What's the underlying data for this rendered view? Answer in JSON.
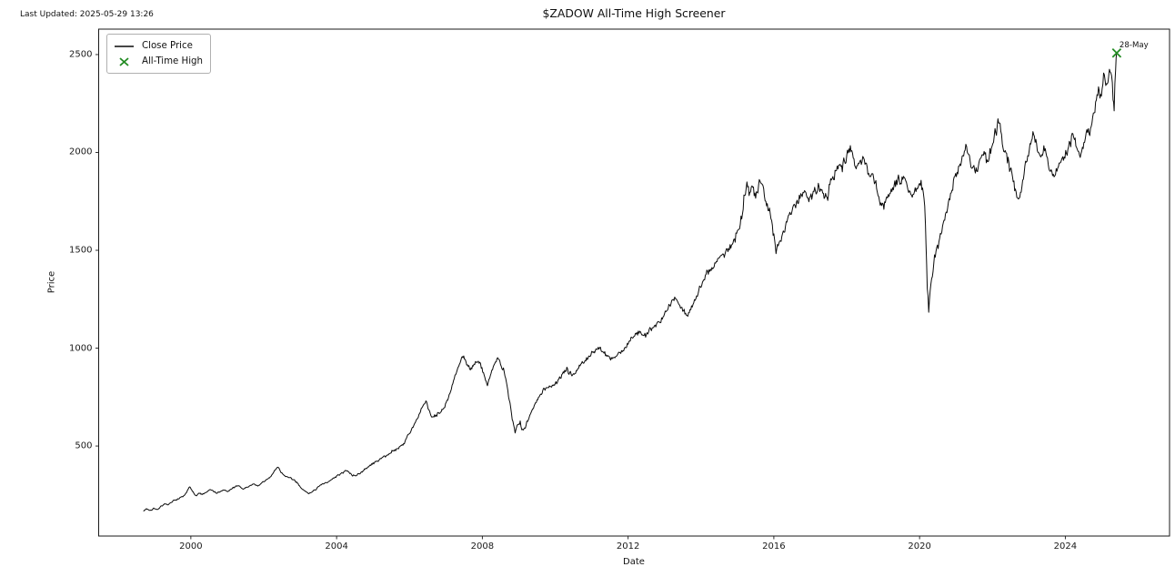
{
  "header": {
    "last_updated": "Last Updated: 2025-05-29 13:26",
    "title": "$ZADOW All-Time High Screener"
  },
  "legend": {
    "close_price": "Close Price",
    "all_time_high": "All-Time High"
  },
  "colors": {
    "line": "#0a0a0a",
    "marker_green": "#228B22",
    "spine": "#1a1a1a",
    "text": "#111111",
    "background": "#ffffff"
  },
  "chart_data": {
    "type": "line",
    "title": "$ZADOW All-Time High Screener",
    "xlabel": "Date",
    "ylabel": "Price",
    "xlim": [
      1997.47,
      2026.86
    ],
    "ylim": [
      40,
      2630
    ],
    "xticks": [
      2000,
      2004,
      2008,
      2012,
      2016,
      2020,
      2024
    ],
    "yticks": [
      500,
      1000,
      1500,
      2000,
      2500
    ],
    "grid": false,
    "legend_position": "upper left",
    "series": [
      {
        "name": "Close Price",
        "color": "#0a0a0a",
        "anchors": [
          [
            1998.7,
            167
          ],
          [
            1998.78,
            180
          ],
          [
            1998.88,
            171
          ],
          [
            1998.98,
            184
          ],
          [
            1999.08,
            176
          ],
          [
            1999.18,
            194
          ],
          [
            1999.28,
            206
          ],
          [
            1999.38,
            200
          ],
          [
            1999.48,
            212
          ],
          [
            1999.58,
            222
          ],
          [
            1999.68,
            230
          ],
          [
            1999.78,
            240
          ],
          [
            1999.88,
            262
          ],
          [
            1999.97,
            291
          ],
          [
            2000.06,
            268
          ],
          [
            2000.14,
            247
          ],
          [
            2000.22,
            259
          ],
          [
            2000.32,
            252
          ],
          [
            2000.42,
            263
          ],
          [
            2000.52,
            277
          ],
          [
            2000.62,
            267
          ],
          [
            2000.72,
            258
          ],
          [
            2000.82,
            268
          ],
          [
            2000.92,
            274
          ],
          [
            2001.02,
            266
          ],
          [
            2001.12,
            278
          ],
          [
            2001.22,
            290
          ],
          [
            2001.32,
            296
          ],
          [
            2001.42,
            281
          ],
          [
            2001.52,
            288
          ],
          [
            2001.62,
            297
          ],
          [
            2001.72,
            305
          ],
          [
            2001.82,
            298
          ],
          [
            2001.92,
            307
          ],
          [
            2002.02,
            318
          ],
          [
            2002.12,
            333
          ],
          [
            2002.22,
            352
          ],
          [
            2002.32,
            377
          ],
          [
            2002.4,
            390
          ],
          [
            2002.48,
            363
          ],
          [
            2002.58,
            348
          ],
          [
            2002.68,
            339
          ],
          [
            2002.78,
            328
          ],
          [
            2002.88,
            314
          ],
          [
            2002.98,
            297
          ],
          [
            2003.08,
            278
          ],
          [
            2003.18,
            264
          ],
          [
            2003.28,
            261
          ],
          [
            2003.38,
            277
          ],
          [
            2003.48,
            291
          ],
          [
            2003.58,
            301
          ],
          [
            2003.68,
            312
          ],
          [
            2003.78,
            320
          ],
          [
            2003.88,
            329
          ],
          [
            2003.98,
            339
          ],
          [
            2004.08,
            350
          ],
          [
            2004.18,
            360
          ],
          [
            2004.28,
            371
          ],
          [
            2004.38,
            361
          ],
          [
            2004.48,
            351
          ],
          [
            2004.58,
            359
          ],
          [
            2004.68,
            369
          ],
          [
            2004.78,
            381
          ],
          [
            2004.88,
            393
          ],
          [
            2004.98,
            406
          ],
          [
            2005.08,
            420
          ],
          [
            2005.18,
            433
          ],
          [
            2005.28,
            444
          ],
          [
            2005.38,
            453
          ],
          [
            2005.48,
            463
          ],
          [
            2005.58,
            475
          ],
          [
            2005.68,
            487
          ],
          [
            2005.78,
            502
          ],
          [
            2005.88,
            524
          ],
          [
            2005.98,
            560
          ],
          [
            2006.08,
            596
          ],
          [
            2006.18,
            631
          ],
          [
            2006.28,
            667
          ],
          [
            2006.38,
            708
          ],
          [
            2006.45,
            729
          ],
          [
            2006.53,
            686
          ],
          [
            2006.61,
            649
          ],
          [
            2006.69,
            661
          ],
          [
            2006.79,
            673
          ],
          [
            2006.89,
            690
          ],
          [
            2006.99,
            720
          ],
          [
            2007.09,
            766
          ],
          [
            2007.19,
            818
          ],
          [
            2007.29,
            874
          ],
          [
            2007.39,
            924
          ],
          [
            2007.47,
            949
          ],
          [
            2007.57,
            911
          ],
          [
            2007.67,
            889
          ],
          [
            2007.77,
            919
          ],
          [
            2007.87,
            931
          ],
          [
            2007.97,
            896
          ],
          [
            2008.07,
            849
          ],
          [
            2008.14,
            807
          ],
          [
            2008.22,
            860
          ],
          [
            2008.32,
            914
          ],
          [
            2008.42,
            953
          ],
          [
            2008.52,
            906
          ],
          [
            2008.62,
            856
          ],
          [
            2008.72,
            748
          ],
          [
            2008.82,
            634
          ],
          [
            2008.9,
            566
          ],
          [
            2008.97,
            610
          ],
          [
            2009.04,
            630
          ],
          [
            2009.12,
            583
          ],
          [
            2009.22,
            630
          ],
          [
            2009.32,
            664
          ],
          [
            2009.42,
            703
          ],
          [
            2009.52,
            736
          ],
          [
            2009.62,
            762
          ],
          [
            2009.72,
            782
          ],
          [
            2009.82,
            797
          ],
          [
            2009.92,
            812
          ],
          [
            2010.02,
            832
          ],
          [
            2010.12,
            855
          ],
          [
            2010.22,
            882
          ],
          [
            2010.32,
            905
          ],
          [
            2010.42,
            882
          ],
          [
            2010.52,
            868
          ],
          [
            2010.62,
            897
          ],
          [
            2010.72,
            920
          ],
          [
            2010.82,
            938
          ],
          [
            2010.92,
            958
          ],
          [
            2011.02,
            984
          ],
          [
            2011.12,
            998
          ],
          [
            2011.22,
            1004
          ],
          [
            2011.32,
            980
          ],
          [
            2011.42,
            955
          ],
          [
            2011.52,
            938
          ],
          [
            2011.62,
            954
          ],
          [
            2011.72,
            972
          ],
          [
            2011.82,
            991
          ],
          [
            2011.92,
            1006
          ],
          [
            2012.02,
            1032
          ],
          [
            2012.12,
            1052
          ],
          [
            2012.22,
            1072
          ],
          [
            2012.32,
            1088
          ],
          [
            2012.42,
            1066
          ],
          [
            2012.52,
            1080
          ],
          [
            2012.62,
            1098
          ],
          [
            2012.72,
            1118
          ],
          [
            2012.82,
            1138
          ],
          [
            2012.92,
            1158
          ],
          [
            2013.02,
            1192
          ],
          [
            2013.12,
            1226
          ],
          [
            2013.22,
            1247
          ],
          [
            2013.3,
            1254
          ],
          [
            2013.4,
            1224
          ],
          [
            2013.5,
            1186
          ],
          [
            2013.6,
            1170
          ],
          [
            2013.7,
            1200
          ],
          [
            2013.8,
            1230
          ],
          [
            2013.9,
            1262
          ],
          [
            2014.0,
            1308
          ],
          [
            2014.1,
            1344
          ],
          [
            2014.2,
            1377
          ],
          [
            2014.3,
            1410
          ],
          [
            2014.4,
            1434
          ],
          [
            2014.5,
            1457
          ],
          [
            2014.6,
            1484
          ],
          [
            2014.7,
            1510
          ],
          [
            2014.8,
            1534
          ],
          [
            2014.9,
            1562
          ],
          [
            2015.0,
            1604
          ],
          [
            2015.1,
            1682
          ],
          [
            2015.18,
            1788
          ],
          [
            2015.26,
            1856
          ],
          [
            2015.34,
            1796
          ],
          [
            2015.42,
            1822
          ],
          [
            2015.5,
            1764
          ],
          [
            2015.58,
            1832
          ],
          [
            2015.66,
            1838
          ],
          [
            2015.74,
            1774
          ],
          [
            2015.82,
            1744
          ],
          [
            2015.9,
            1690
          ],
          [
            2015.98,
            1574
          ],
          [
            2016.06,
            1478
          ],
          [
            2016.14,
            1536
          ],
          [
            2016.24,
            1588
          ],
          [
            2016.34,
            1648
          ],
          [
            2016.44,
            1700
          ],
          [
            2016.54,
            1730
          ],
          [
            2016.64,
            1757
          ],
          [
            2016.74,
            1790
          ],
          [
            2016.84,
            1806
          ],
          [
            2016.92,
            1774
          ],
          [
            2017.02,
            1796
          ],
          [
            2017.12,
            1826
          ],
          [
            2017.22,
            1848
          ],
          [
            2017.32,
            1814
          ],
          [
            2017.42,
            1800
          ],
          [
            2017.52,
            1844
          ],
          [
            2017.62,
            1880
          ],
          [
            2017.72,
            1910
          ],
          [
            2017.82,
            1944
          ],
          [
            2017.92,
            1977
          ],
          [
            2018.02,
            2012
          ],
          [
            2018.1,
            2040
          ],
          [
            2018.18,
            1968
          ],
          [
            2018.26,
            1920
          ],
          [
            2018.36,
            1956
          ],
          [
            2018.46,
            1974
          ],
          [
            2018.56,
            1926
          ],
          [
            2018.66,
            1874
          ],
          [
            2018.76,
            1834
          ],
          [
            2018.86,
            1780
          ],
          [
            2018.96,
            1724
          ],
          [
            2019.02,
            1706
          ],
          [
            2019.12,
            1764
          ],
          [
            2019.22,
            1814
          ],
          [
            2019.32,
            1860
          ],
          [
            2019.42,
            1894
          ],
          [
            2019.52,
            1880
          ],
          [
            2019.62,
            1854
          ],
          [
            2019.72,
            1804
          ],
          [
            2019.82,
            1790
          ],
          [
            2019.92,
            1816
          ],
          [
            2020.02,
            1826
          ],
          [
            2020.1,
            1790
          ],
          [
            2020.16,
            1630
          ],
          [
            2020.21,
            1300
          ],
          [
            2020.25,
            1178
          ],
          [
            2020.31,
            1324
          ],
          [
            2020.39,
            1434
          ],
          [
            2020.47,
            1514
          ],
          [
            2020.57,
            1586
          ],
          [
            2020.67,
            1650
          ],
          [
            2020.77,
            1714
          ],
          [
            2020.87,
            1794
          ],
          [
            2020.97,
            1876
          ],
          [
            2021.07,
            1936
          ],
          [
            2021.17,
            1986
          ],
          [
            2021.27,
            2044
          ],
          [
            2021.37,
            1990
          ],
          [
            2021.47,
            1934
          ],
          [
            2021.57,
            1906
          ],
          [
            2021.67,
            1970
          ],
          [
            2021.77,
            2004
          ],
          [
            2021.87,
            1954
          ],
          [
            2021.97,
            2024
          ],
          [
            2022.07,
            2130
          ],
          [
            2022.15,
            2174
          ],
          [
            2022.25,
            2096
          ],
          [
            2022.35,
            2014
          ],
          [
            2022.45,
            1954
          ],
          [
            2022.55,
            1880
          ],
          [
            2022.65,
            1800
          ],
          [
            2022.73,
            1764
          ],
          [
            2022.83,
            1860
          ],
          [
            2022.93,
            1954
          ],
          [
            2023.03,
            2050
          ],
          [
            2023.11,
            2106
          ],
          [
            2023.21,
            2044
          ],
          [
            2023.31,
            1986
          ],
          [
            2023.41,
            2036
          ],
          [
            2023.51,
            1974
          ],
          [
            2023.61,
            1916
          ],
          [
            2023.71,
            1880
          ],
          [
            2023.81,
            1924
          ],
          [
            2023.91,
            1970
          ],
          [
            2024.01,
            2016
          ],
          [
            2024.11,
            2060
          ],
          [
            2024.21,
            2094
          ],
          [
            2024.31,
            2024
          ],
          [
            2024.41,
            1976
          ],
          [
            2024.51,
            2050
          ],
          [
            2024.59,
            2120
          ],
          [
            2024.67,
            2086
          ],
          [
            2024.75,
            2184
          ],
          [
            2024.83,
            2260
          ],
          [
            2024.91,
            2336
          ],
          [
            2024.99,
            2290
          ],
          [
            2025.07,
            2394
          ],
          [
            2025.15,
            2350
          ],
          [
            2025.21,
            2430
          ],
          [
            2025.27,
            2386
          ],
          [
            2025.31,
            2264
          ],
          [
            2025.34,
            2206
          ],
          [
            2025.38,
            2416
          ],
          [
            2025.41,
            2508
          ]
        ]
      }
    ],
    "ath_marker": {
      "name": "All-Time High",
      "x": 2025.41,
      "y": 2508,
      "label": "28-May",
      "color": "#228B22"
    },
    "noise": {
      "seed": 7,
      "step_years": 0.019,
      "jitter_pct": 0.009,
      "wander_step_pct": 0.011,
      "wander_decay": 0.9
    }
  }
}
